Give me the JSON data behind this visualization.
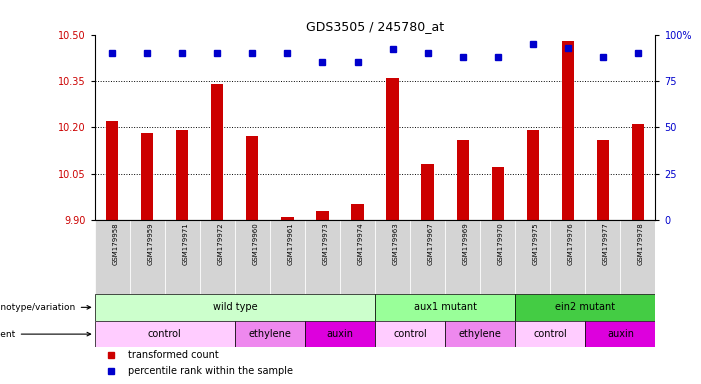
{
  "title": "GDS3505 / 245780_at",
  "samples": [
    "GSM179958",
    "GSM179959",
    "GSM179971",
    "GSM179972",
    "GSM179960",
    "GSM179961",
    "GSM179973",
    "GSM179974",
    "GSM179963",
    "GSM179967",
    "GSM179969",
    "GSM179970",
    "GSM179975",
    "GSM179976",
    "GSM179977",
    "GSM179978"
  ],
  "bar_values": [
    10.22,
    10.18,
    10.19,
    10.34,
    10.17,
    9.91,
    9.93,
    9.95,
    10.36,
    10.08,
    10.16,
    10.07,
    10.19,
    10.48,
    10.16,
    10.21
  ],
  "percentile_values": [
    90,
    90,
    90,
    90,
    90,
    90,
    85,
    85,
    92,
    90,
    88,
    88,
    95,
    93,
    88,
    90
  ],
  "ylim_left": [
    9.9,
    10.5
  ],
  "ylim_right": [
    0,
    100
  ],
  "yticks_left": [
    9.9,
    10.05,
    10.2,
    10.35,
    10.5
  ],
  "yticks_right": [
    0,
    25,
    50,
    75,
    100
  ],
  "bar_color": "#cc0000",
  "percentile_color": "#0000cc",
  "bg_color": "#ffffff",
  "tick_label_color_left": "#cc0000",
  "tick_label_color_right": "#0000cc",
  "sample_cell_color": "#d4d4d4",
  "genotype_groups": [
    {
      "label": "wild type",
      "start": 0,
      "end": 7,
      "color": "#ccffcc"
    },
    {
      "label": "aux1 mutant",
      "start": 8,
      "end": 11,
      "color": "#99ff99"
    },
    {
      "label": "ein2 mutant",
      "start": 12,
      "end": 15,
      "color": "#44cc44"
    }
  ],
  "agent_groups": [
    {
      "label": "control",
      "start": 0,
      "end": 3,
      "color": "#ffccff"
    },
    {
      "label": "ethylene",
      "start": 4,
      "end": 5,
      "color": "#ee88ee"
    },
    {
      "label": "auxin",
      "start": 6,
      "end": 7,
      "color": "#dd00dd"
    },
    {
      "label": "control",
      "start": 8,
      "end": 9,
      "color": "#ffccff"
    },
    {
      "label": "ethylene",
      "start": 10,
      "end": 11,
      "color": "#ee88ee"
    },
    {
      "label": "control",
      "start": 12,
      "end": 13,
      "color": "#ffccff"
    },
    {
      "label": "auxin",
      "start": 14,
      "end": 15,
      "color": "#dd00dd"
    }
  ]
}
